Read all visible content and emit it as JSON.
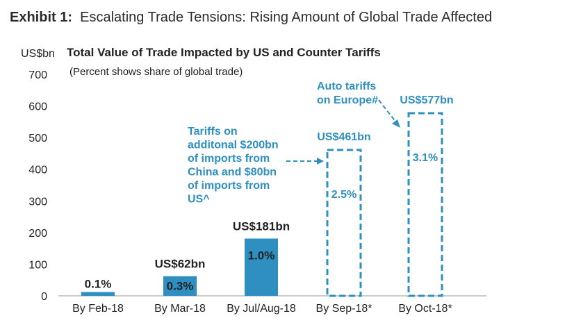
{
  "exhibit": {
    "label": "Exhibit 1:",
    "title": "Escalating Trade Tensions: Rising Amount of Global Trade Affected"
  },
  "chart_data": {
    "type": "bar",
    "title": "Total Value of Trade Impacted by US and Counter Tariffs",
    "subtitle": "(Percent shows share of global trade)",
    "ylabel": "US$bn",
    "ylim": [
      0,
      700
    ],
    "yticks": [
      "0",
      "100",
      "200",
      "300",
      "400",
      "500",
      "600",
      "700"
    ],
    "categories": [
      "By Feb-18",
      "By Mar-18",
      "By Jul/Aug-18",
      "By Sep-18*",
      "By Oct-18*"
    ],
    "values": [
      12,
      62,
      181,
      461,
      577
    ],
    "style": [
      "solid",
      "solid",
      "solid",
      "dashed",
      "dashed"
    ],
    "value_labels": [
      "",
      "US$62bn",
      "US$181bn",
      "US$461bn",
      "US$577bn"
    ],
    "share_labels": [
      "0.1%",
      "0.3%",
      "1.0%",
      "2.5%",
      "3.1%"
    ],
    "grid": false,
    "bar_color": "#2e8fc0",
    "annotations": [
      {
        "lines": [
          "Tariffs on",
          "additonal $200bn",
          "of imports from",
          "China and $80bn",
          "of imports from",
          "US^"
        ]
      },
      {
        "lines": [
          "Auto tariffs",
          "on Europe#"
        ]
      }
    ]
  }
}
